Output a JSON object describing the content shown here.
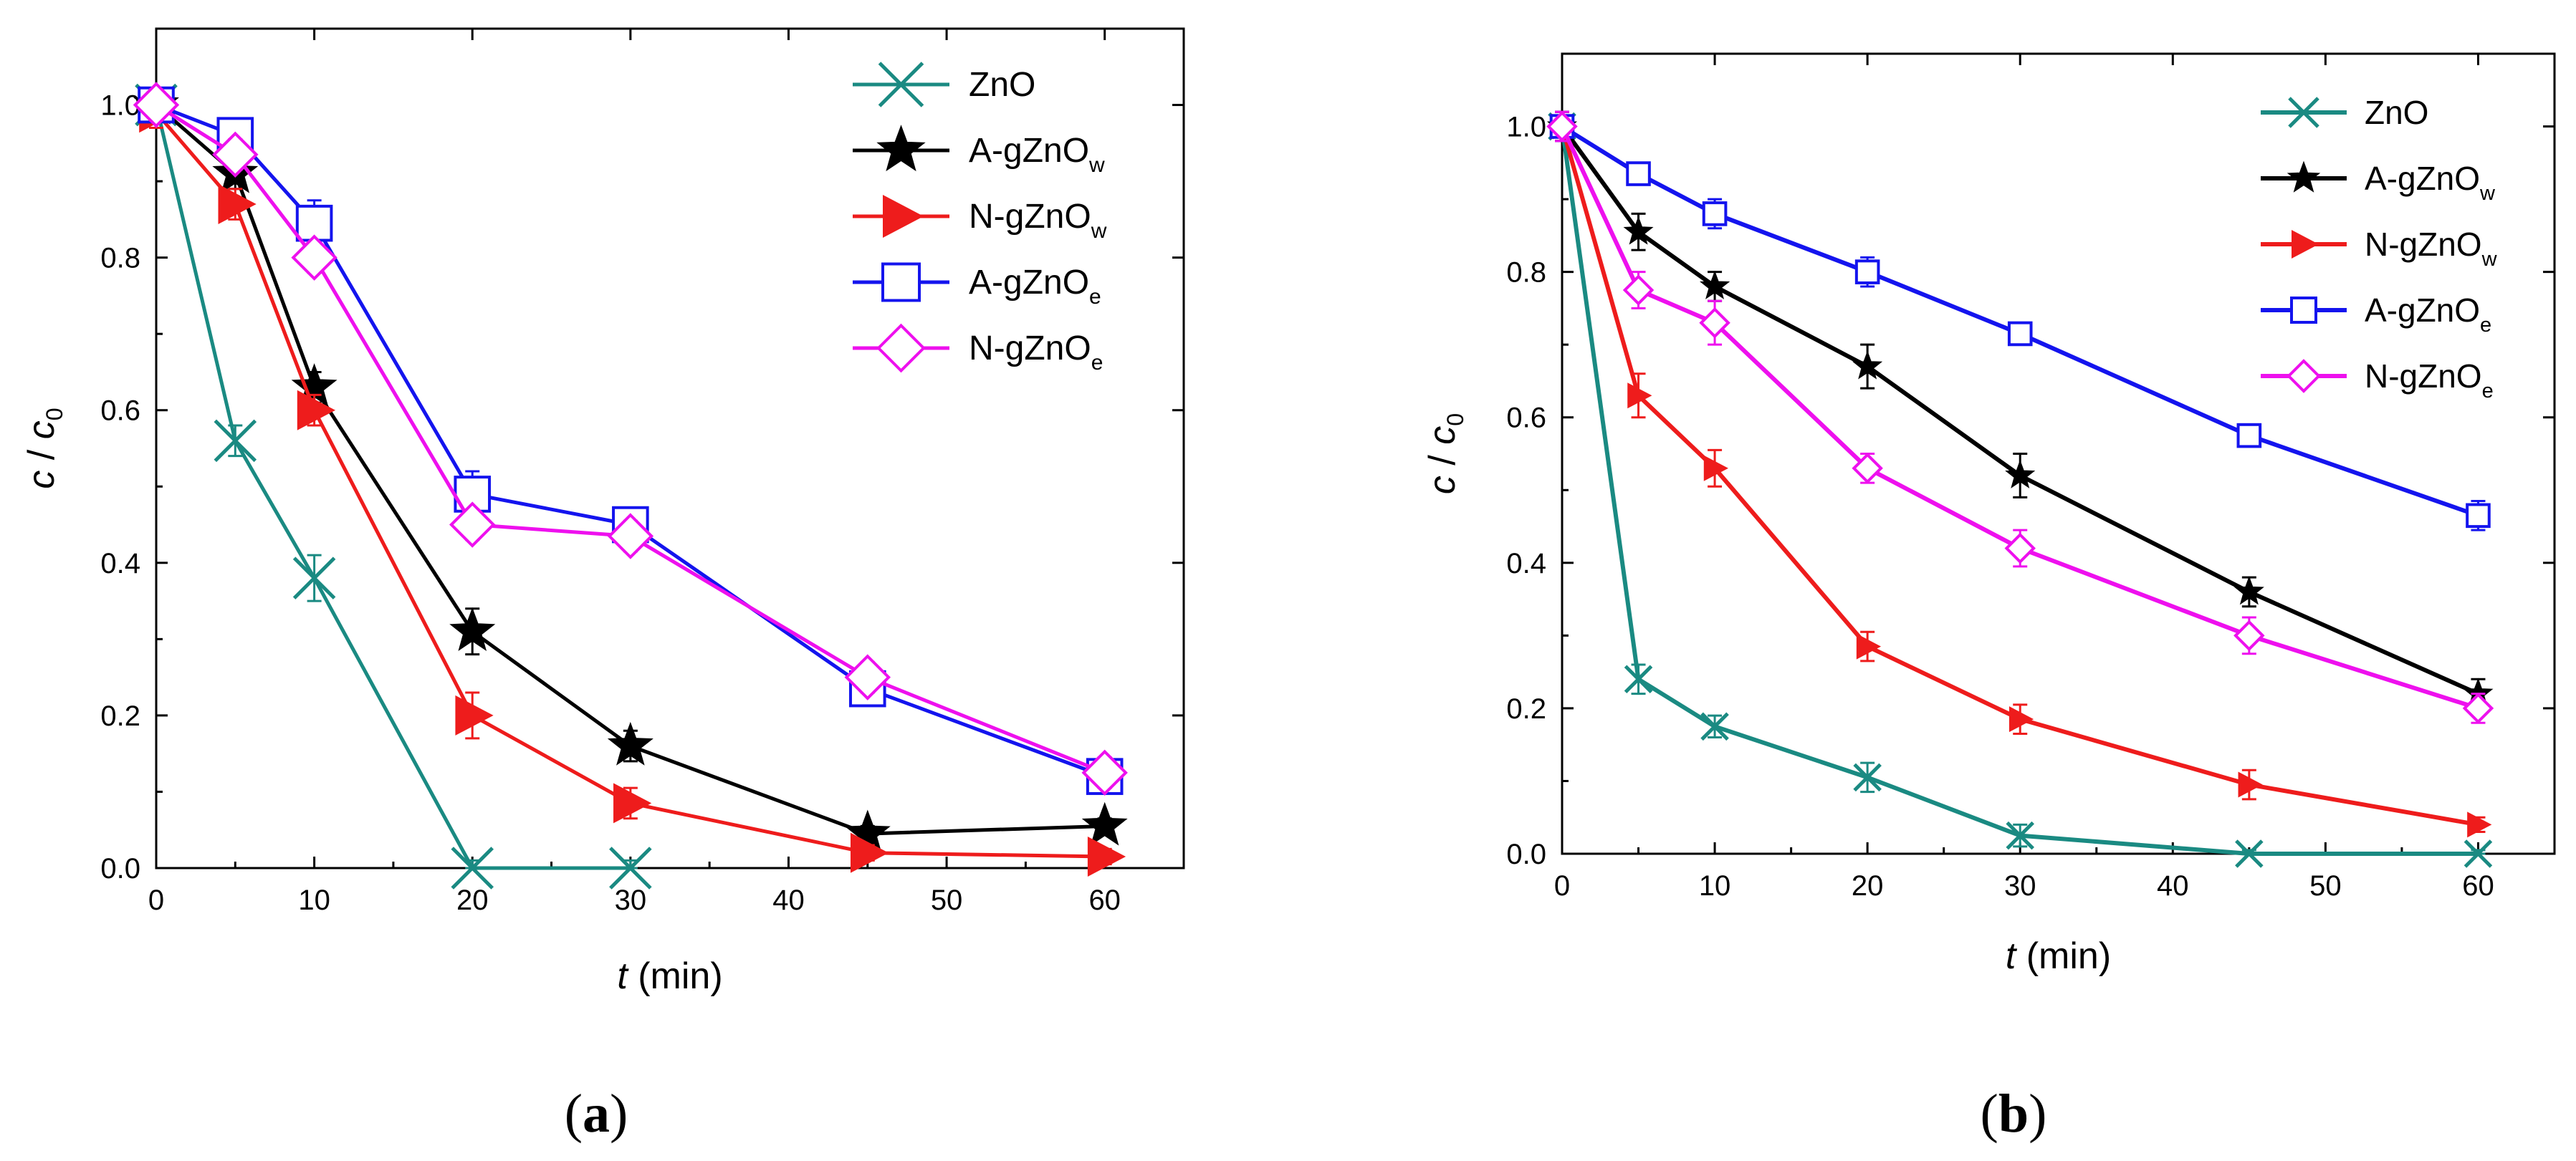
{
  "chart_data": [
    {
      "panel": "(a)",
      "panel_letter": "a",
      "type": "line",
      "xlabel_var": "t",
      "xlabel_unit": " (min)",
      "ylabel_c": "c",
      "ylabel_slash": " / ",
      "ylabel_c0": "c",
      "ylabel_c0_sub": "0",
      "xlim": [
        0,
        65
      ],
      "ylim": [
        0,
        1.1
      ],
      "xticks": [
        0,
        10,
        20,
        30,
        40,
        50,
        60
      ],
      "yticks": [
        0.0,
        0.2,
        0.4,
        0.6,
        0.8,
        1.0
      ],
      "ytick_labels": [
        "0.0",
        "0.2",
        "0.4",
        "0.6",
        "0.8",
        "1.0"
      ],
      "legend_position": "top-right",
      "x": [
        0,
        5,
        10,
        20,
        30,
        45,
        60
      ],
      "series": [
        {
          "name": "ZnO",
          "name_base": "ZnO",
          "name_sub": "",
          "color": "#1a8a82",
          "marker": "x",
          "x": [
            0,
            5,
            10,
            20,
            30
          ],
          "values": [
            1.0,
            0.56,
            0.38,
            0.0,
            0.0
          ],
          "errors": [
            0.02,
            0.02,
            0.03,
            0.01,
            0.01
          ]
        },
        {
          "name": "A-gZnOw",
          "name_base": "A-gZnO",
          "name_sub": "w",
          "color": "#000000",
          "marker": "star",
          "x": [
            0,
            5,
            10,
            20,
            30,
            45,
            60
          ],
          "values": [
            1.0,
            0.91,
            0.63,
            0.31,
            0.16,
            0.045,
            0.055
          ],
          "errors": [
            0.02,
            0.02,
            0.02,
            0.03,
            0.02,
            0.01,
            0.01
          ]
        },
        {
          "name": "N-gZnOw",
          "name_base": "N-gZnO",
          "name_sub": "w",
          "color": "#ee1c1c",
          "marker": "triangle-right",
          "x": [
            0,
            5,
            10,
            20,
            30,
            45,
            60
          ],
          "values": [
            0.99,
            0.87,
            0.6,
            0.2,
            0.085,
            0.02,
            0.015
          ],
          "errors": [
            0.02,
            0.02,
            0.02,
            0.03,
            0.02,
            0.01,
            0.01
          ]
        },
        {
          "name": "A-gZnOe",
          "name_base": "A-gZnO",
          "name_sub": "e",
          "color": "#1414ee",
          "marker": "square",
          "x": [
            0,
            5,
            10,
            20,
            30,
            45,
            60
          ],
          "values": [
            1.0,
            0.96,
            0.845,
            0.49,
            0.45,
            0.235,
            0.12
          ],
          "errors": [
            0.02,
            0.02,
            0.03,
            0.03,
            0.02,
            0.02,
            0.02
          ]
        },
        {
          "name": "N-gZnOe",
          "name_base": "N-gZnO",
          "name_sub": "e",
          "color": "#ee10ee",
          "marker": "diamond",
          "x": [
            0,
            5,
            10,
            20,
            30,
            45,
            60
          ],
          "values": [
            1.0,
            0.935,
            0.8,
            0.45,
            0.435,
            0.25,
            0.125
          ],
          "errors": [
            0.02,
            0.02,
            0.02,
            0.02,
            0.02,
            0.02,
            0.02
          ]
        }
      ]
    },
    {
      "panel": "(b)",
      "panel_letter": "b",
      "type": "line",
      "xlabel_var": "t",
      "xlabel_unit": " (min)",
      "ylabel_c": "c",
      "ylabel_slash": " / ",
      "ylabel_c0": "c",
      "ylabel_c0_sub": "0",
      "xlim": [
        0,
        65
      ],
      "ylim": [
        0,
        1.1
      ],
      "xticks": [
        0,
        10,
        20,
        30,
        40,
        50,
        60
      ],
      "yticks": [
        0.0,
        0.2,
        0.4,
        0.6,
        0.8,
        1.0
      ],
      "ytick_labels": [
        "0.0",
        "0.2",
        "0.4",
        "0.6",
        "0.8",
        "1.0"
      ],
      "legend_position": "top-right",
      "x": [
        0,
        5,
        10,
        20,
        30,
        45,
        60
      ],
      "series": [
        {
          "name": "ZnO",
          "name_base": "ZnO",
          "name_sub": "",
          "color": "#1a8a82",
          "marker": "x",
          "x": [
            0,
            5,
            10,
            20,
            30,
            45,
            60
          ],
          "values": [
            1.0,
            0.24,
            0.175,
            0.105,
            0.025,
            0.0,
            0.0
          ],
          "errors": [
            0.02,
            0.02,
            0.015,
            0.02,
            0.015,
            0.005,
            0.005
          ]
        },
        {
          "name": "A-gZnOw",
          "name_base": "A-gZnO",
          "name_sub": "w",
          "color": "#000000",
          "marker": "star",
          "x": [
            0,
            5,
            10,
            20,
            30,
            45,
            60
          ],
          "values": [
            1.0,
            0.855,
            0.78,
            0.67,
            0.52,
            0.36,
            0.22
          ],
          "errors": [
            0.02,
            0.025,
            0.02,
            0.03,
            0.03,
            0.02,
            0.02
          ]
        },
        {
          "name": "N-gZnOw",
          "name_base": "N-gZnO",
          "name_sub": "w",
          "color": "#ee1c1c",
          "marker": "triangle-right",
          "x": [
            0,
            5,
            10,
            20,
            30,
            45,
            60
          ],
          "values": [
            1.0,
            0.63,
            0.53,
            0.285,
            0.185,
            0.095,
            0.04
          ],
          "errors": [
            0.02,
            0.03,
            0.025,
            0.02,
            0.02,
            0.02,
            0.01
          ]
        },
        {
          "name": "A-gZnOe",
          "name_base": "A-gZnO",
          "name_sub": "e",
          "color": "#1414ee",
          "marker": "square",
          "x": [
            0,
            5,
            10,
            20,
            30,
            45,
            60
          ],
          "values": [
            1.0,
            0.935,
            0.88,
            0.8,
            0.715,
            0.575,
            0.465
          ],
          "errors": [
            0.02,
            0.015,
            0.02,
            0.02,
            0.015,
            0.015,
            0.02
          ]
        },
        {
          "name": "N-gZnOe",
          "name_base": "N-gZnO",
          "name_sub": "e",
          "color": "#ee10ee",
          "marker": "diamond",
          "x": [
            0,
            5,
            10,
            20,
            30,
            45,
            60
          ],
          "values": [
            1.0,
            0.775,
            0.73,
            0.53,
            0.42,
            0.3,
            0.2
          ],
          "errors": [
            0.02,
            0.025,
            0.03,
            0.02,
            0.025,
            0.025,
            0.02
          ]
        }
      ]
    }
  ]
}
